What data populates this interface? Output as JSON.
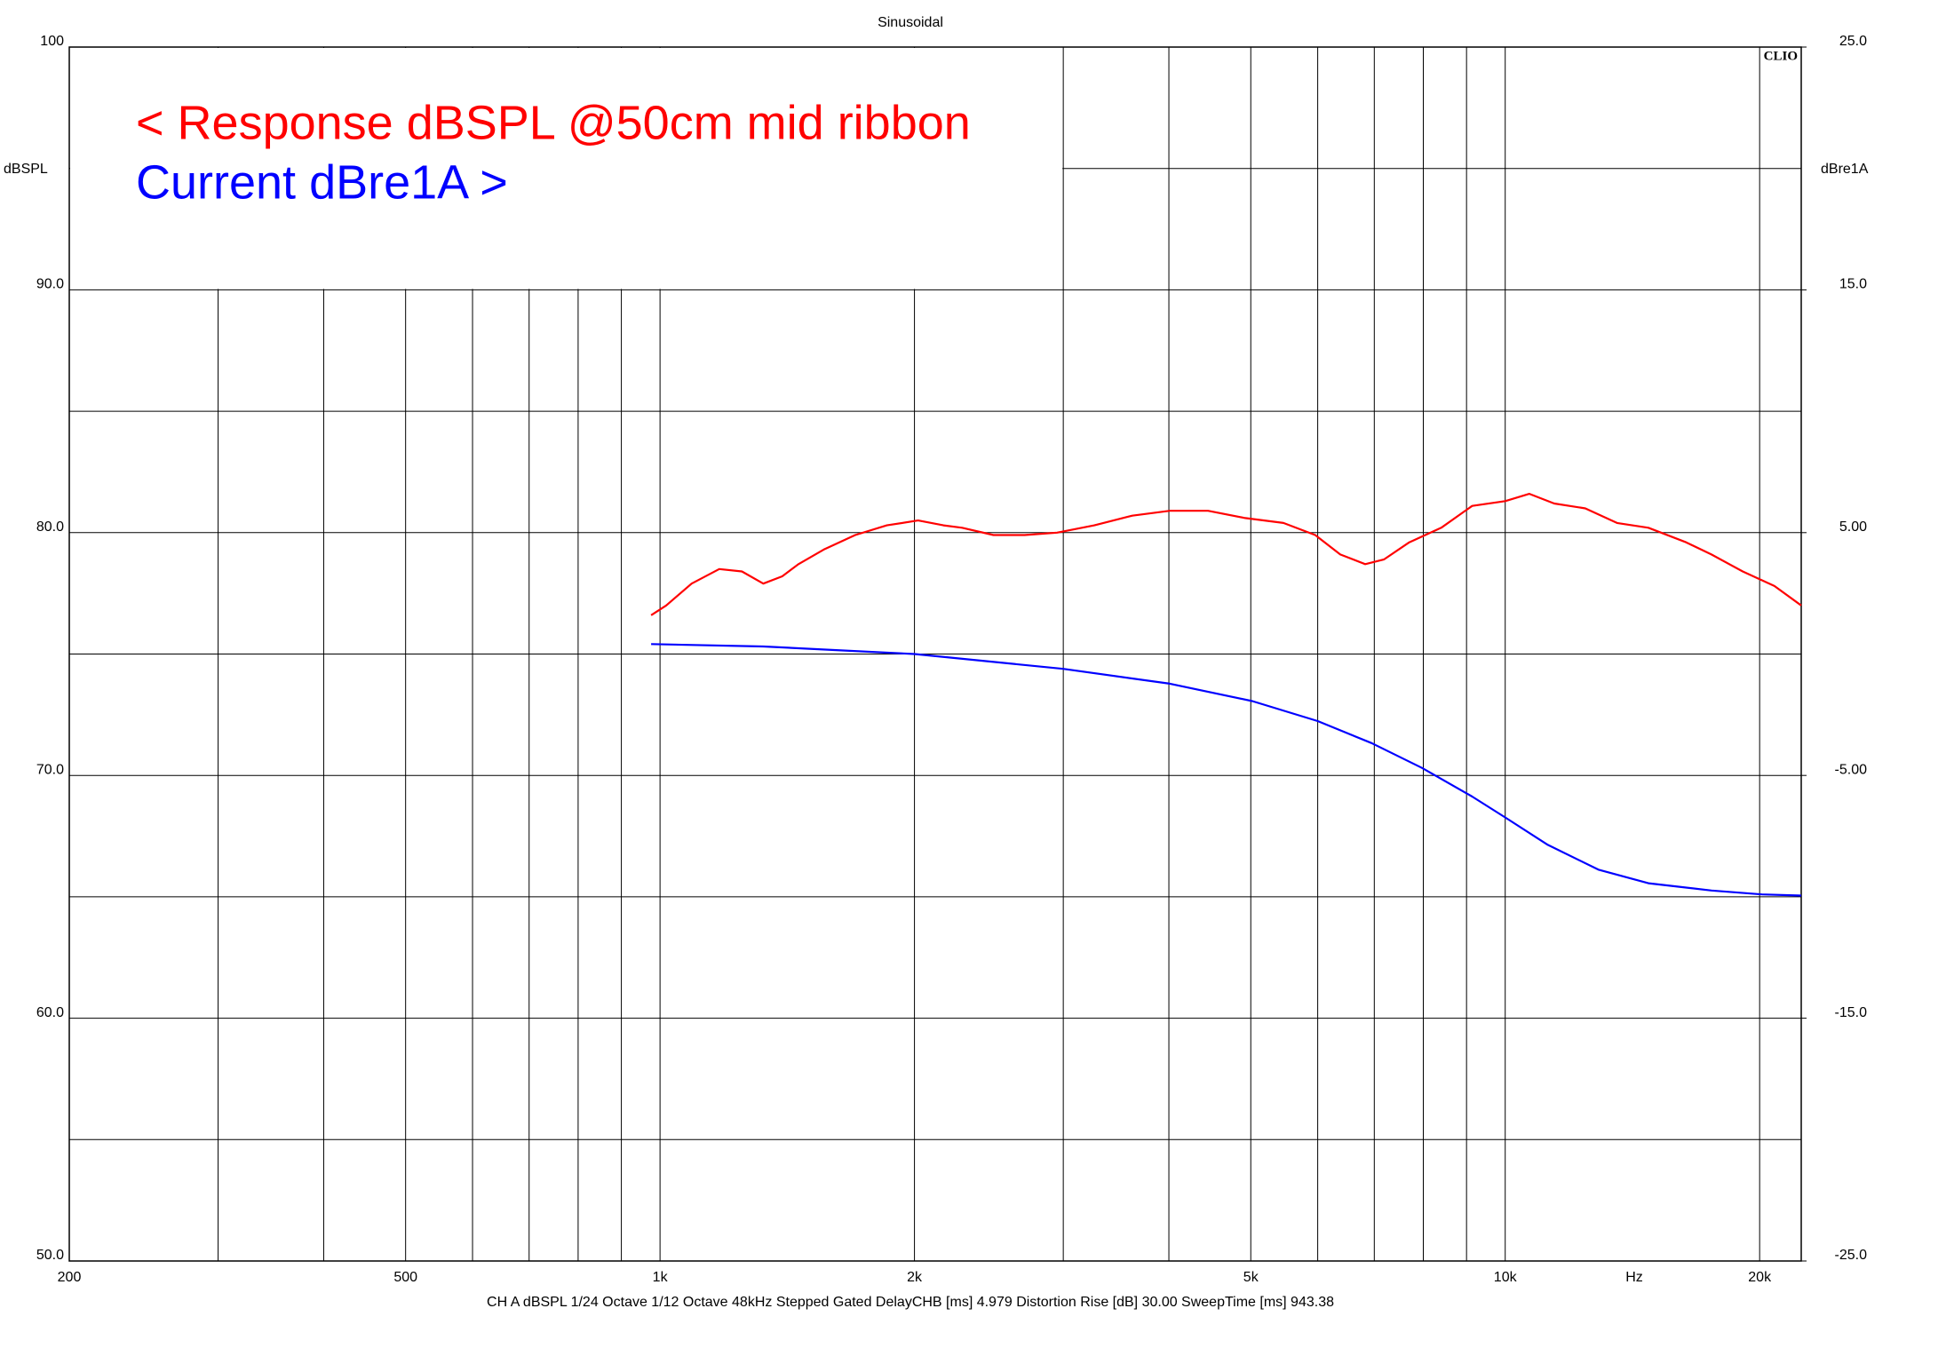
{
  "chart_data": {
    "type": "line",
    "title": "Sinusoidal",
    "annotations": [
      "< Response dBSPL @50cm mid ribbon",
      "Current dBre1A >"
    ],
    "annotation_colors": [
      "#ff0000",
      "#0000ff"
    ],
    "logo": "CLIO",
    "footer": "CH A   dBSPL   1/24 Octave   1/12 Octave   48kHz   Stepped   Gated   DelayCHB [ms] 4.979   Distortion Rise [dB] 30.00   SweepTime [ms] 943.38",
    "ylabel": "dBSPL",
    "y2label": "dBre1A",
    "xlabel": "Hz",
    "xscale": "log",
    "xlim": [
      200,
      22400
    ],
    "xticks": [
      200,
      500,
      {
        "value": 1000,
        "label": "1k"
      },
      {
        "value": 2000,
        "label": "2k"
      },
      {
        "value": 5000,
        "label": "5k"
      },
      {
        "value": 10000,
        "label": "10k"
      },
      {
        "value": 20000,
        "label": "20k"
      }
    ],
    "xminor": [
      300,
      400,
      600,
      700,
      800,
      900,
      3000,
      4000,
      6000,
      7000,
      8000,
      9000
    ],
    "ylim": [
      50,
      100
    ],
    "yticks": [
      {
        "value": 50,
        "label": "50.0"
      },
      {
        "value": 60,
        "label": "60.0"
      },
      {
        "value": 70,
        "label": "70.0"
      },
      {
        "value": 80,
        "label": "80.0"
      },
      {
        "value": 90,
        "label": "90.0"
      },
      100
    ],
    "yminor": [
      55,
      65,
      75,
      85,
      95
    ],
    "y2lim": [
      -25,
      25
    ],
    "y2ticks": [
      {
        "value": -25,
        "label": "-25.0"
      },
      {
        "value": -15,
        "label": "-15.0"
      },
      {
        "value": -5,
        "label": "-5.00"
      },
      {
        "value": 5,
        "label": "5.00"
      },
      {
        "value": 15,
        "label": "15.0"
      },
      {
        "value": 25,
        "label": "25.0"
      }
    ],
    "grid": true,
    "series": [
      {
        "name": "Response dBSPL",
        "color": "#ff0000",
        "x": [
          976,
          1017,
          1090,
          1175,
          1250,
          1325,
          1395,
          1458,
          1562,
          1702,
          1855,
          2020,
          2165,
          2277,
          2480,
          2700,
          2950,
          3265,
          3620,
          4010,
          4450,
          4925,
          5465,
          5960,
          6380,
          6830,
          7190,
          7700,
          8400,
          9140,
          10000,
          10680,
          11430,
          12440,
          13560,
          14770,
          16370,
          17540,
          19100,
          20820,
          22400
        ],
        "values": [
          76.6,
          77.0,
          77.9,
          78.5,
          78.4,
          77.9,
          78.2,
          78.7,
          79.3,
          79.9,
          80.3,
          80.5,
          80.3,
          80.2,
          79.9,
          79.9,
          80.0,
          80.3,
          80.7,
          80.9,
          80.9,
          80.6,
          80.4,
          79.9,
          79.1,
          78.7,
          78.9,
          79.6,
          80.2,
          81.1,
          81.3,
          81.6,
          81.2,
          81.0,
          80.4,
          80.2,
          79.6,
          79.1,
          78.4,
          77.8,
          77.0
        ]
      },
      {
        "name": "Current dBre1A",
        "color": "#0000ff",
        "axis": "y2",
        "x": [
          976,
          1325,
          2000,
          3000,
          4010,
          5020,
          6000,
          6950,
          7970,
          9140,
          10000,
          11230,
          12890,
          14770,
          17540,
          20130,
          22400
        ],
        "values": [
          0.41,
          0.31,
          0.0,
          -0.61,
          -1.22,
          -1.94,
          -2.76,
          -3.67,
          -4.69,
          -5.87,
          -6.73,
          -7.86,
          -8.88,
          -9.44,
          -9.74,
          -9.9,
          -9.95
        ]
      }
    ]
  }
}
